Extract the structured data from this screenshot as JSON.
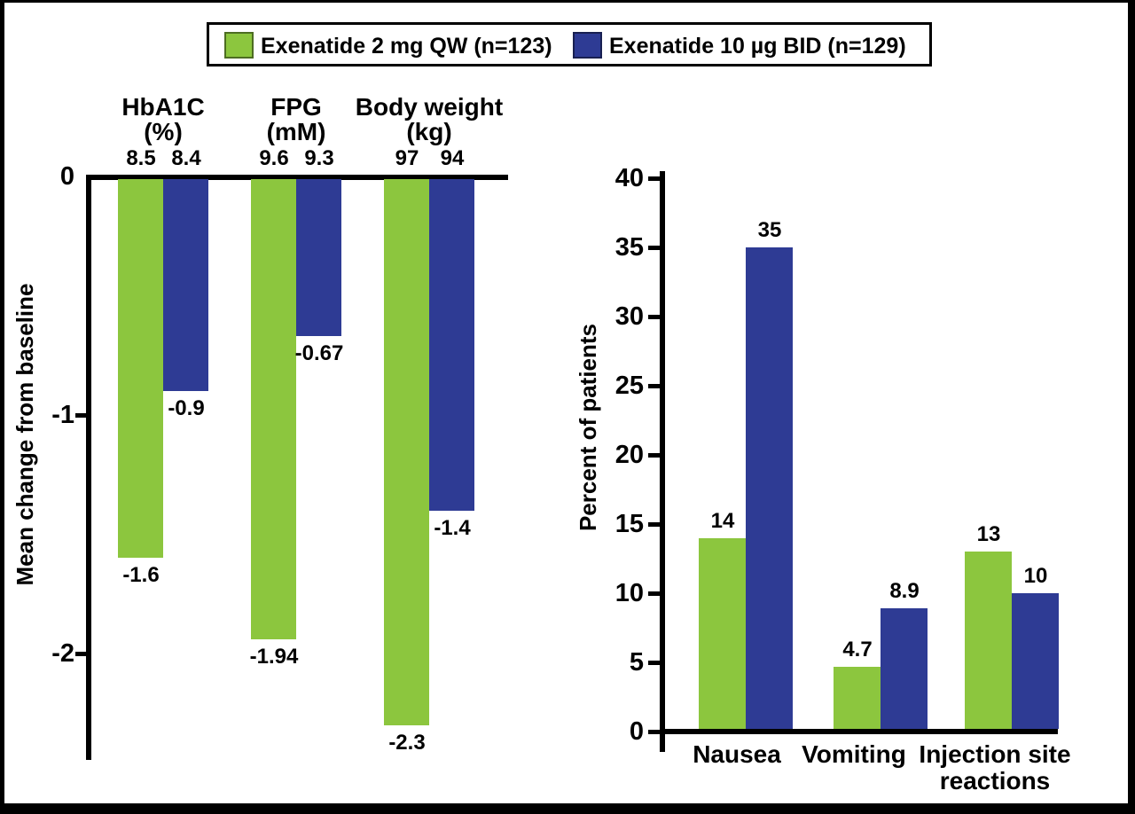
{
  "figure": {
    "background": "#FFFFFF",
    "border_color": "#000000"
  },
  "colors": {
    "green": "#8CC63E",
    "blue": "#2E3B94",
    "axis": "#000000"
  },
  "legend": {
    "items": [
      {
        "label": "Exenatide 2 mg QW (n=123)",
        "color": "#8CC63E",
        "swatch": "green-swatch"
      },
      {
        "label": "Exenatide 10 µg BID (n=129)",
        "color": "#2E3B94",
        "swatch": "blue-swatch"
      }
    ]
  },
  "chart_data": [
    {
      "id": "efficacy-mean-change",
      "type": "bar",
      "title": "",
      "xlabel": "",
      "ylabel": "Mean change from baseline",
      "ylim": [
        -2.47,
        0
      ],
      "yticks": [
        "0",
        "-1",
        "-2"
      ],
      "grid": false,
      "legend_position": "top",
      "categories": [
        "HbA1C",
        "FPG",
        "Body weight"
      ],
      "category_units": [
        "(%)",
        "(mM)",
        "(kg)"
      ],
      "baseline_values": [
        [
          "8.5",
          "8.4"
        ],
        [
          "9.6",
          "9.3"
        ],
        [
          "97",
          "94"
        ]
      ],
      "series": [
        {
          "name": "Exenatide 2 mg QW (n=123)",
          "color": "#8CC63E",
          "values": [
            -1.6,
            -1.94,
            -2.3
          ],
          "labels": [
            "-1.6",
            "-1.94",
            "-2.3"
          ]
        },
        {
          "name": "Exenatide 10 µg BID (n=129)",
          "color": "#2E3B94",
          "values": [
            -0.9,
            -0.67,
            -1.4
          ],
          "labels": [
            "-0.9",
            "-0.67",
            "-1.4"
          ]
        }
      ]
    },
    {
      "id": "tolerability-percent-patients",
      "type": "bar",
      "title": "",
      "xlabel": "",
      "ylabel": "Percent of patients",
      "ylim": [
        0,
        40
      ],
      "yticks": [
        0,
        5,
        10,
        15,
        20,
        25,
        30,
        35,
        40
      ],
      "grid": false,
      "legend_position": "top",
      "categories": [
        "Nausea",
        "Vomiting",
        "Injection site reactions"
      ],
      "series": [
        {
          "name": "Exenatide 2 mg QW (n=123)",
          "color": "#8CC63E",
          "values": [
            14,
            4.7,
            13
          ],
          "labels": [
            "14",
            "4.7",
            "13"
          ]
        },
        {
          "name": "Exenatide 10 µg BID (n=129)",
          "color": "#2E3B94",
          "values": [
            35,
            8.9,
            10
          ],
          "labels": [
            "35",
            "8.9",
            "10"
          ]
        }
      ]
    }
  ]
}
